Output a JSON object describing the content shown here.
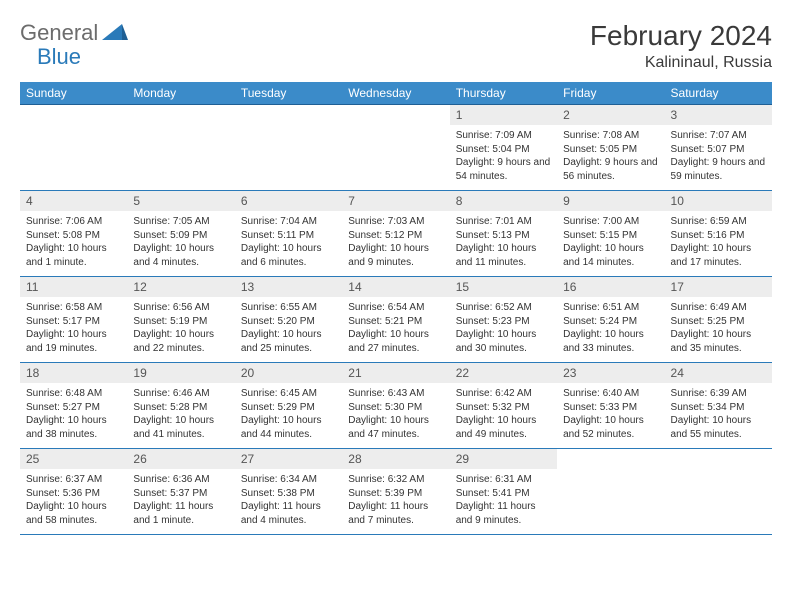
{
  "brand": {
    "left": "General",
    "right": "Blue"
  },
  "title": "February 2024",
  "location": "Kalininaul, Russia",
  "colors": {
    "header_bg": "#3b8bc9",
    "header_text": "#ffffff",
    "row_border": "#2a7ab9",
    "daynum_bg": "#ededed",
    "brand_gray": "#6c6c6c",
    "brand_blue": "#2a7ab9"
  },
  "dayHeaders": [
    "Sunday",
    "Monday",
    "Tuesday",
    "Wednesday",
    "Thursday",
    "Friday",
    "Saturday"
  ],
  "weeks": [
    [
      null,
      null,
      null,
      null,
      {
        "n": "1",
        "sr": "7:09 AM",
        "ss": "5:04 PM",
        "dl": "9 hours and 54 minutes."
      },
      {
        "n": "2",
        "sr": "7:08 AM",
        "ss": "5:05 PM",
        "dl": "9 hours and 56 minutes."
      },
      {
        "n": "3",
        "sr": "7:07 AM",
        "ss": "5:07 PM",
        "dl": "9 hours and 59 minutes."
      }
    ],
    [
      {
        "n": "4",
        "sr": "7:06 AM",
        "ss": "5:08 PM",
        "dl": "10 hours and 1 minute."
      },
      {
        "n": "5",
        "sr": "7:05 AM",
        "ss": "5:09 PM",
        "dl": "10 hours and 4 minutes."
      },
      {
        "n": "6",
        "sr": "7:04 AM",
        "ss": "5:11 PM",
        "dl": "10 hours and 6 minutes."
      },
      {
        "n": "7",
        "sr": "7:03 AM",
        "ss": "5:12 PM",
        "dl": "10 hours and 9 minutes."
      },
      {
        "n": "8",
        "sr": "7:01 AM",
        "ss": "5:13 PM",
        "dl": "10 hours and 11 minutes."
      },
      {
        "n": "9",
        "sr": "7:00 AM",
        "ss": "5:15 PM",
        "dl": "10 hours and 14 minutes."
      },
      {
        "n": "10",
        "sr": "6:59 AM",
        "ss": "5:16 PM",
        "dl": "10 hours and 17 minutes."
      }
    ],
    [
      {
        "n": "11",
        "sr": "6:58 AM",
        "ss": "5:17 PM",
        "dl": "10 hours and 19 minutes."
      },
      {
        "n": "12",
        "sr": "6:56 AM",
        "ss": "5:19 PM",
        "dl": "10 hours and 22 minutes."
      },
      {
        "n": "13",
        "sr": "6:55 AM",
        "ss": "5:20 PM",
        "dl": "10 hours and 25 minutes."
      },
      {
        "n": "14",
        "sr": "6:54 AM",
        "ss": "5:21 PM",
        "dl": "10 hours and 27 minutes."
      },
      {
        "n": "15",
        "sr": "6:52 AM",
        "ss": "5:23 PM",
        "dl": "10 hours and 30 minutes."
      },
      {
        "n": "16",
        "sr": "6:51 AM",
        "ss": "5:24 PM",
        "dl": "10 hours and 33 minutes."
      },
      {
        "n": "17",
        "sr": "6:49 AM",
        "ss": "5:25 PM",
        "dl": "10 hours and 35 minutes."
      }
    ],
    [
      {
        "n": "18",
        "sr": "6:48 AM",
        "ss": "5:27 PM",
        "dl": "10 hours and 38 minutes."
      },
      {
        "n": "19",
        "sr": "6:46 AM",
        "ss": "5:28 PM",
        "dl": "10 hours and 41 minutes."
      },
      {
        "n": "20",
        "sr": "6:45 AM",
        "ss": "5:29 PM",
        "dl": "10 hours and 44 minutes."
      },
      {
        "n": "21",
        "sr": "6:43 AM",
        "ss": "5:30 PM",
        "dl": "10 hours and 47 minutes."
      },
      {
        "n": "22",
        "sr": "6:42 AM",
        "ss": "5:32 PM",
        "dl": "10 hours and 49 minutes."
      },
      {
        "n": "23",
        "sr": "6:40 AM",
        "ss": "5:33 PM",
        "dl": "10 hours and 52 minutes."
      },
      {
        "n": "24",
        "sr": "6:39 AM",
        "ss": "5:34 PM",
        "dl": "10 hours and 55 minutes."
      }
    ],
    [
      {
        "n": "25",
        "sr": "6:37 AM",
        "ss": "5:36 PM",
        "dl": "10 hours and 58 minutes."
      },
      {
        "n": "26",
        "sr": "6:36 AM",
        "ss": "5:37 PM",
        "dl": "11 hours and 1 minute."
      },
      {
        "n": "27",
        "sr": "6:34 AM",
        "ss": "5:38 PM",
        "dl": "11 hours and 4 minutes."
      },
      {
        "n": "28",
        "sr": "6:32 AM",
        "ss": "5:39 PM",
        "dl": "11 hours and 7 minutes."
      },
      {
        "n": "29",
        "sr": "6:31 AM",
        "ss": "5:41 PM",
        "dl": "11 hours and 9 minutes."
      },
      null,
      null
    ]
  ],
  "labels": {
    "sunrise": "Sunrise: ",
    "sunset": "Sunset: ",
    "daylight": "Daylight: "
  }
}
